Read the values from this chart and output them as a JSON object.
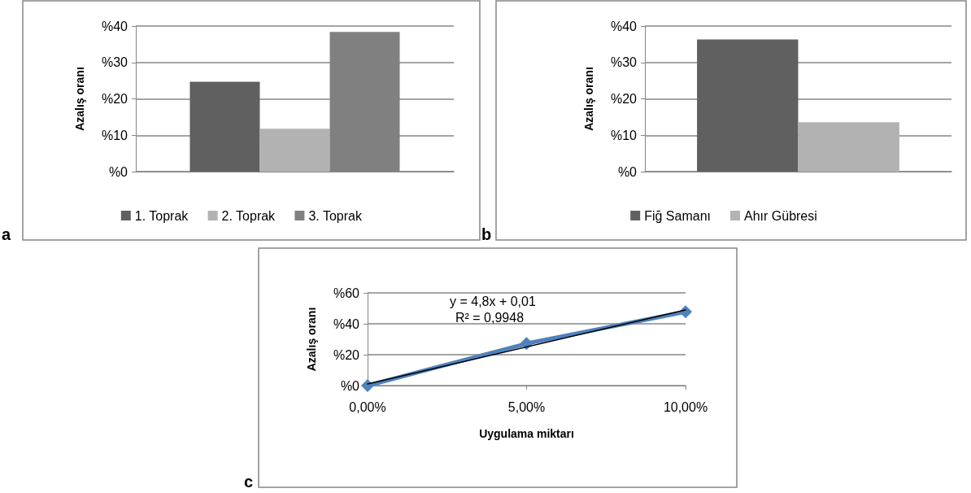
{
  "chart_data": [
    {
      "type": "bar",
      "ylabel": "Azalış oranı",
      "categories": [
        null
      ],
      "series": [
        {
          "name": "1. Toprak",
          "color": "#606060",
          "values": [
            24.7
          ]
        },
        {
          "name": "2. Toprak",
          "color": "#b2b2b2",
          "values": [
            11.8
          ]
        },
        {
          "name": "3. Toprak",
          "color": "#808080",
          "values": [
            38.4
          ]
        }
      ],
      "ylim": [
        0,
        40
      ],
      "yticks": [
        {
          "value": 0,
          "label": "%0"
        },
        {
          "value": 10,
          "label": "%10"
        },
        {
          "value": 20,
          "label": "%20"
        },
        {
          "value": 30,
          "label": "%30"
        },
        {
          "value": 40,
          "label": "%40"
        }
      ],
      "grid": "y",
      "legend": "bottom",
      "annotations": [
        "a"
      ]
    },
    {
      "type": "bar",
      "ylabel": "Azalış oranı",
      "categories": [
        null
      ],
      "series": [
        {
          "name": "Fiğ Samanı",
          "color": "#606060",
          "values": [
            36.3
          ]
        },
        {
          "name": "Ahır Gübresi",
          "color": "#b2b2b2",
          "values": [
            13.6
          ]
        }
      ],
      "ylim": [
        0,
        40
      ],
      "yticks": [
        {
          "value": 0,
          "label": "%0"
        },
        {
          "value": 10,
          "label": "%10"
        },
        {
          "value": 20,
          "label": "%20"
        },
        {
          "value": 30,
          "label": "%30"
        },
        {
          "value": 40,
          "label": "%40"
        }
      ],
      "grid": "y",
      "legend": "bottom",
      "annotations": [
        "b"
      ]
    },
    {
      "type": "line",
      "xlabel": "Uygulama miktarı",
      "ylabel": "Azalış oranı",
      "series": [
        {
          "color": "#4f81bd",
          "x": [
            0,
            5,
            10
          ],
          "values": [
            0,
            27.2,
            47.8
          ],
          "marker": "diamond"
        },
        {
          "color": "#000000",
          "x": [
            0,
            10
          ],
          "values": [
            1,
            49
          ],
          "marker": "none"
        }
      ],
      "xlim": [
        0,
        10
      ],
      "xticks": [
        {
          "value": 0,
          "label": "0,00%"
        },
        {
          "value": 5,
          "label": "5,00%"
        },
        {
          "value": 10,
          "label": "10,00%"
        }
      ],
      "ylim": [
        0,
        60
      ],
      "yticks": [
        {
          "value": 0,
          "label": "%0"
        },
        {
          "value": 20,
          "label": "%20"
        },
        {
          "value": 40,
          "label": "%40"
        },
        {
          "value": 60,
          "label": "%60"
        }
      ],
      "grid": "y",
      "annotations": [
        "y = 4,8x + 0,01",
        "R² = 0,9948",
        "c"
      ]
    }
  ]
}
